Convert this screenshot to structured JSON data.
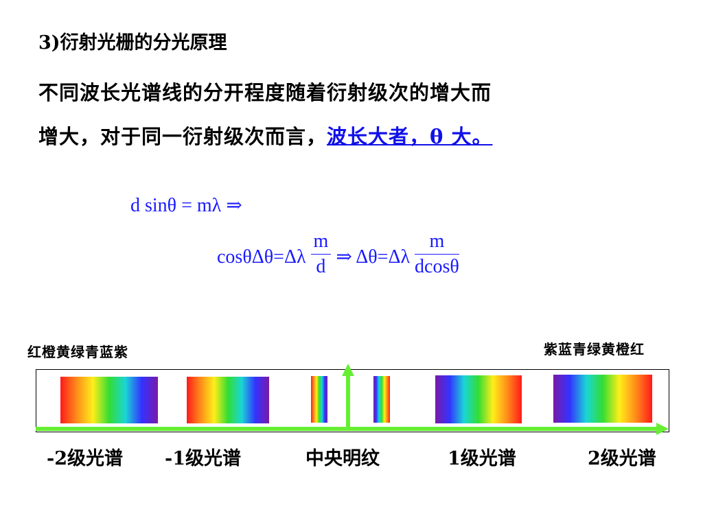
{
  "heading": "3)衍射光栅的分光原理",
  "paragraph": {
    "line1": "不同波长光谱线的分开程度随着衍射级次的增大而",
    "line2_prefix": "增大，对于同一衍射级次而言，",
    "line2_highlight": "波长大者，θ 大。"
  },
  "equations": {
    "eq1": "d sinθ = mλ ⇒",
    "eq2_left": "cosθΔθ=Δλ",
    "eq2_frac1_num": "m",
    "eq2_frac1_den": "d",
    "eq2_mid": "⇒ Δθ=Δλ",
    "eq2_frac2_num": "m",
    "eq2_frac2_den": "dcosθ"
  },
  "spectrum_labels": {
    "left_order": "红橙黄绿青蓝紫",
    "right_order": "紫蓝青绿黄橙红"
  },
  "order_labels": {
    "minus2": "-2级光谱",
    "minus1": "-1级光谱",
    "central": "中央明纹",
    "plus1": "1级光谱",
    "plus2": "2级光谱"
  },
  "colors": {
    "math_blue": "#1a1aff",
    "highlight_blue": "#0000ee",
    "axis_green": "#66ee33",
    "rainbow": [
      "#ff1a1a",
      "#ff8c1a",
      "#ffee1a",
      "#33dd33",
      "#1ad6d6",
      "#3333ff",
      "#7a1aa8"
    ]
  }
}
